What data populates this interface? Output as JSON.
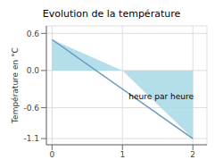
{
  "chart_data": {
    "type": "line",
    "title": "Evolution de la température",
    "ylabel": "Température en °C",
    "series": [
      {
        "type": "area",
        "color": "#a8d8e8",
        "x": [
          0,
          1.0,
          2.0
        ],
        "values": [
          0.5,
          0.0,
          -1.1
        ]
      },
      {
        "type": "line",
        "color": "#6699bb",
        "x": [
          0,
          2.0
        ],
        "values": [
          0.5,
          -1.1
        ]
      }
    ],
    "annotations": [
      {
        "text": "heure par heure",
        "x": 1.55,
        "y": -0.42
      }
    ],
    "xlim": [
      -0.08,
      2.2
    ],
    "ylim": [
      -1.2,
      0.72
    ],
    "xticks": [
      0,
      1,
      2
    ],
    "yticks": [
      -1.1,
      -0.6,
      {
        "value": 0.0,
        "label": "0.0"
      },
      0.6
    ],
    "grid": true
  }
}
